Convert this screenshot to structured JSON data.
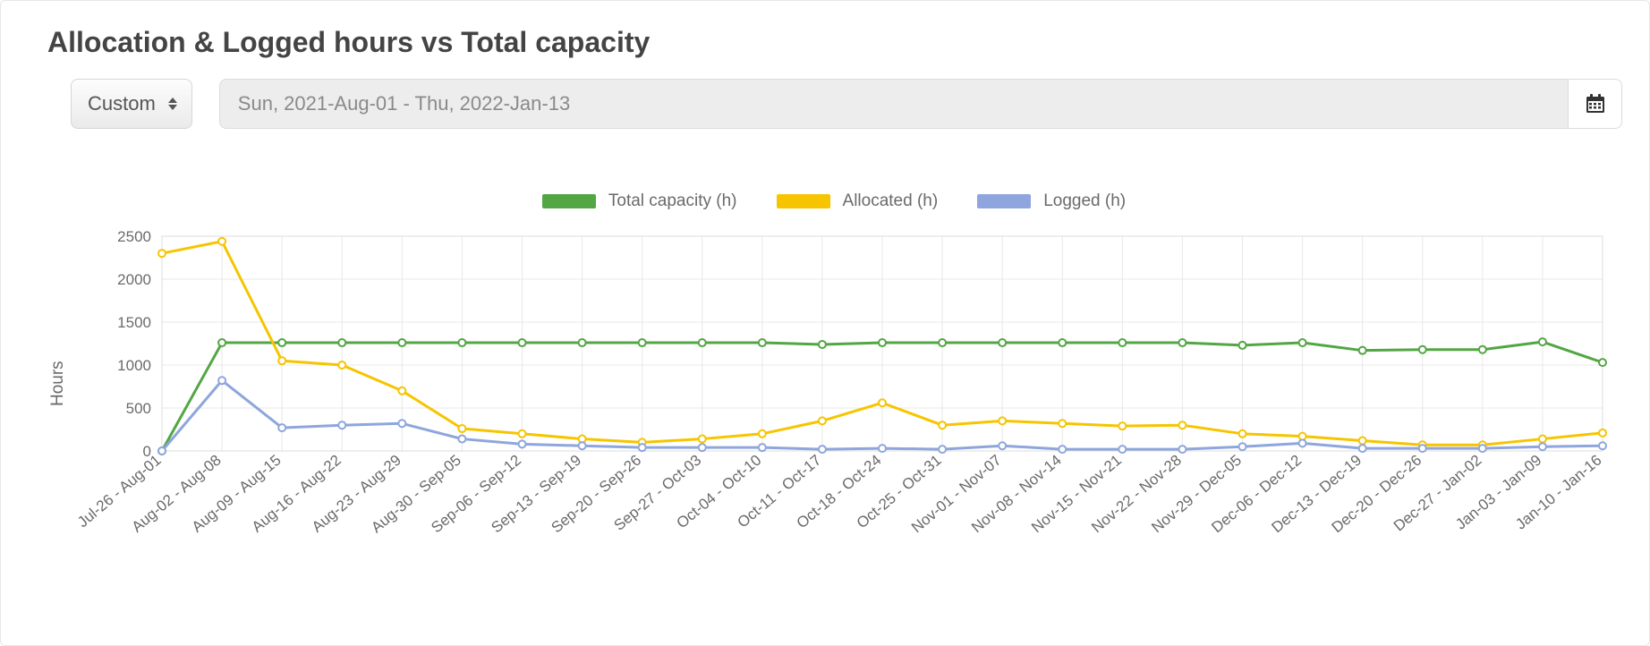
{
  "title": "Allocation & Logged hours vs Total capacity",
  "controls": {
    "select_label": "Custom",
    "date_range_text": "Sun, 2021-Aug-01 - Thu, 2022-Jan-13"
  },
  "chart": {
    "type": "line",
    "ylabel": "Hours",
    "background_color": "#ffffff",
    "grid_color": "#e8e8e8",
    "axis_color": "#dcdcdc",
    "tick_font_color": "#6a6a6a",
    "tick_fontsize": 17,
    "label_fontsize": 19,
    "ylim": [
      0,
      2500
    ],
    "ytick_step": 500,
    "yticks": [
      0,
      500,
      1000,
      1500,
      2000,
      2500
    ],
    "marker": {
      "shape": "circle",
      "radius": 5,
      "inner_radius": 3,
      "inner_fill": "#ffffff"
    },
    "line_width": 3,
    "x_labels": [
      "Jul-26 - Aug-01",
      "Aug-02 - Aug-08",
      "Aug-09 - Aug-15",
      "Aug-16 - Aug-22",
      "Aug-23 - Aug-29",
      "Aug-30 - Sep-05",
      "Sep-06 - Sep-12",
      "Sep-13 - Sep-19",
      "Sep-20 - Sep-26",
      "Sep-27 - Oct-03",
      "Oct-04 - Oct-10",
      "Oct-11 - Oct-17",
      "Oct-18 - Oct-24",
      "Oct-25 - Oct-31",
      "Nov-01 - Nov-07",
      "Nov-08 - Nov-14",
      "Nov-15 - Nov-21",
      "Nov-22 - Nov-28",
      "Nov-29 - Dec-05",
      "Dec-06 - Dec-12",
      "Dec-13 - Dec-19",
      "Dec-20 - Dec-26",
      "Dec-27 - Jan-02",
      "Jan-03 - Jan-09",
      "Jan-10 - Jan-16"
    ],
    "legend": {
      "position": "top-center",
      "items": [
        {
          "key": "total_capacity",
          "label": "Total capacity (h)",
          "color": "#53a644"
        },
        {
          "key": "allocated",
          "label": "Allocated (h)",
          "color": "#f6c500"
        },
        {
          "key": "logged",
          "label": "Logged (h)",
          "color": "#8ea6dd"
        }
      ]
    },
    "series": {
      "total_capacity": {
        "color": "#53a644",
        "values": [
          0,
          1260,
          1260,
          1260,
          1260,
          1260,
          1260,
          1260,
          1260,
          1260,
          1260,
          1240,
          1260,
          1260,
          1260,
          1260,
          1260,
          1260,
          1230,
          1260,
          1170,
          1180,
          1180,
          1270,
          1030
        ]
      },
      "allocated": {
        "color": "#f6c500",
        "values": [
          2300,
          2440,
          1050,
          1000,
          700,
          260,
          200,
          140,
          100,
          140,
          200,
          350,
          560,
          300,
          350,
          320,
          290,
          300,
          200,
          170,
          120,
          70,
          70,
          140,
          210
        ]
      },
      "logged": {
        "color": "#8ea6dd",
        "values": [
          0,
          820,
          270,
          300,
          320,
          140,
          80,
          60,
          40,
          40,
          40,
          20,
          30,
          20,
          60,
          20,
          20,
          20,
          50,
          90,
          30,
          30,
          30,
          50,
          60
        ]
      }
    }
  }
}
